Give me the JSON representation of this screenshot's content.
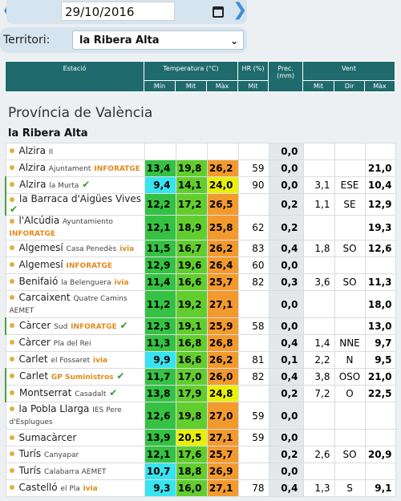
{
  "date": {
    "value": "29/10/2016",
    "prev_icon": "chevron-left-icon",
    "next_icon": "chevron-right-icon"
  },
  "territori": {
    "label": "Territori:",
    "selected": "la Ribera Alta"
  },
  "table_header": {
    "estacio": "Estació",
    "temperatura": "Temperatura (°C)",
    "hr": "HR (%)",
    "prec": "Prec. (mm)",
    "vent": "Vent",
    "min": "Mín",
    "mit": "Mit",
    "max": "Màx",
    "hr_mit": "Mit",
    "vent_mit": "Mit",
    "vent_dir": "Dir",
    "vent_max": "Màx"
  },
  "province": "Província de València",
  "region": "la Ribera Alta",
  "colors": {
    "min_cold": "#38e3f0",
    "green_dark": "#35c243",
    "green_mid": "#62ce2e",
    "yellow": "#e8f00a",
    "orange": "#f39a2e",
    "header": "#1f6a6d"
  },
  "stations": [
    {
      "name": "Alzira",
      "sub": "II",
      "brand": "",
      "check": false,
      "min": "",
      "mit": "",
      "max": "",
      "hr": "",
      "prec": "0,0",
      "vmit": "",
      "vdir": "",
      "vmax": ""
    },
    {
      "name": "Alzira",
      "sub": "Ajuntament",
      "brand": "INFORATGE",
      "check": false,
      "min": "13,4",
      "mit": "19,8",
      "max": "26,2",
      "hr": "59",
      "prec": "0,0",
      "vmit": "",
      "vdir": "",
      "vmax": "21,0"
    },
    {
      "name": "Alzira",
      "sub": "la Murta",
      "brand": "",
      "check": true,
      "min": "9,4",
      "mit": "14,1",
      "max": "24,0",
      "hr": "90",
      "prec": "0,0",
      "vmit": "3,1",
      "vdir": "ESE",
      "vmax": "10,4"
    },
    {
      "name": "la Barraca d'Aigües Vives",
      "sub": "",
      "brand": "",
      "check": true,
      "min": "12,2",
      "mit": "17,2",
      "max": "26,5",
      "hr": "",
      "prec": "0,2",
      "vmit": "1,1",
      "vdir": "SE",
      "vmax": "12,9"
    },
    {
      "name": "l'Alcúdia",
      "sub": "Ayuntamiento",
      "brand": "INFORATGE",
      "check": false,
      "min": "12,1",
      "mit": "18,9",
      "max": "25,8",
      "hr": "62",
      "prec": "0,2",
      "vmit": "",
      "vdir": "",
      "vmax": "19,3"
    },
    {
      "name": "Algemesí",
      "sub": "Casa Penedès",
      "brand": "ivia",
      "check": false,
      "min": "11,5",
      "mit": "16,7",
      "max": "26,2",
      "hr": "83",
      "prec": "0,4",
      "vmit": "1,8",
      "vdir": "SO",
      "vmax": "12,6"
    },
    {
      "name": "Algemesí",
      "sub": "",
      "brand": "INFORATGE",
      "check": false,
      "min": "12,9",
      "mit": "19,6",
      "max": "26,4",
      "hr": "60",
      "prec": "0,0",
      "vmit": "",
      "vdir": "",
      "vmax": ""
    },
    {
      "name": "Benifaió",
      "sub": "la Belenguera",
      "brand": "ivia",
      "check": false,
      "min": "11,4",
      "mit": "16,6",
      "max": "25,7",
      "hr": "82",
      "prec": "0,3",
      "vmit": "3,6",
      "vdir": "SO",
      "vmax": "11,3"
    },
    {
      "name": "Carcaixent",
      "sub": "Quatre Camins",
      "sub2": "AEMET",
      "brand": "",
      "check": false,
      "tall": true,
      "min": "11,2",
      "mit": "19,2",
      "max": "27,1",
      "hr": "",
      "prec": "0,0",
      "vmit": "",
      "vdir": "",
      "vmax": "18,0"
    },
    {
      "name": "Càrcer",
      "sub": "Sud",
      "brand": "INFORATGE",
      "check": true,
      "min": "12,3",
      "mit": "19,1",
      "max": "25,9",
      "hr": "58",
      "prec": "0,0",
      "vmit": "",
      "vdir": "",
      "vmax": "13,0"
    },
    {
      "name": "Càrcer",
      "sub": "Pla del Rei",
      "brand": "",
      "check": false,
      "min": "11,3",
      "mit": "16,8",
      "max": "26,8",
      "hr": "",
      "prec": "0,4",
      "vmit": "1,4",
      "vdir": "NNE",
      "vmax": "9,7"
    },
    {
      "name": "Carlet",
      "sub": "el Fossaret",
      "brand": "ivia",
      "check": false,
      "min": "9,9",
      "mit": "16,6",
      "max": "26,2",
      "hr": "81",
      "prec": "0,1",
      "vmit": "2,2",
      "vdir": "N",
      "vmax": "9,5"
    },
    {
      "name": "Carlet",
      "sub": "",
      "brand": "GP Suministros",
      "check": true,
      "min": "11,7",
      "mit": "17,0",
      "max": "26,0",
      "hr": "82",
      "prec": "0,4",
      "vmit": "3,8",
      "vdir": "OSO",
      "vmax": "21,0"
    },
    {
      "name": "Montserrat",
      "sub": "Casadalt",
      "brand": "",
      "check": true,
      "min": "13,8",
      "mit": "17,9",
      "max": "24,8",
      "hr": "",
      "prec": "0,2",
      "vmit": "7,2",
      "vdir": "O",
      "vmax": "22,5"
    },
    {
      "name": "la Pobla Llarga",
      "sub": "IES Pere",
      "sub2": "d'Esplugues",
      "brand": "",
      "check": false,
      "tall": true,
      "min": "12,6",
      "mit": "19,8",
      "max": "27,0",
      "hr": "59",
      "prec": "0,0",
      "vmit": "",
      "vdir": "",
      "vmax": ""
    },
    {
      "name": "Sumacàrcer",
      "sub": "",
      "brand": "",
      "check": false,
      "min": "13,9",
      "mit": "20,5",
      "max": "27,1",
      "hr": "59",
      "prec": "0,0",
      "vmit": "",
      "vdir": "",
      "vmax": ""
    },
    {
      "name": "Turís",
      "sub": "Canyapar",
      "brand": "",
      "check": false,
      "min": "12,1",
      "mit": "17,6",
      "max": "25,7",
      "hr": "",
      "prec": "0,2",
      "vmit": "2,6",
      "vdir": "SO",
      "vmax": "20,9"
    },
    {
      "name": "Turís",
      "sub": "Calabarra AEMET",
      "brand": "",
      "check": false,
      "min": "10,7",
      "mit": "18,8",
      "max": "26,9",
      "hr": "",
      "prec": "0,0",
      "vmit": "",
      "vdir": "",
      "vmax": ""
    },
    {
      "name": "Castelló",
      "sub": "el Pla",
      "brand": "ivia",
      "check": false,
      "min": "9,3",
      "mit": "16,0",
      "max": "27,1",
      "hr": "78",
      "prec": "0,4",
      "vmit": "1,3",
      "vdir": "S",
      "vmax": "9,1"
    }
  ]
}
